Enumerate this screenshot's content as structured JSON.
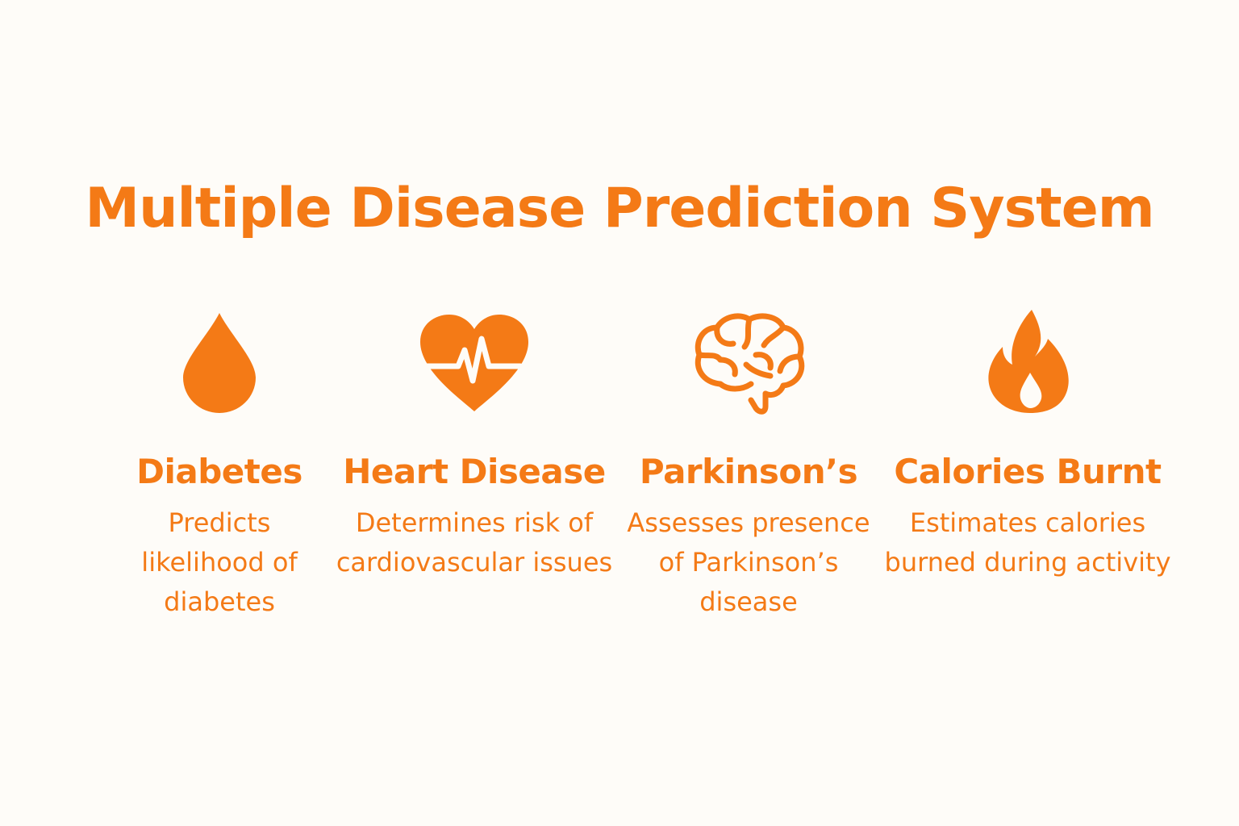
{
  "title": "Multiple Disease Prediction System",
  "accent_color": "#f47a16",
  "background_color": "#fefcf8",
  "features": [
    {
      "icon": "blood-drop-icon",
      "name": "Diabetes",
      "description": "Predicts likelihood of diabetes"
    },
    {
      "icon": "heart-pulse-icon",
      "name": "Heart Disease",
      "description": "Determines risk of cardiovascular issues"
    },
    {
      "icon": "brain-icon",
      "name": "Parkinson’s",
      "description": "Assesses presence of Parkinson’s disease"
    },
    {
      "icon": "flame-icon",
      "name": "Calories Burnt",
      "description": "Estimates calories burned during activity"
    }
  ]
}
